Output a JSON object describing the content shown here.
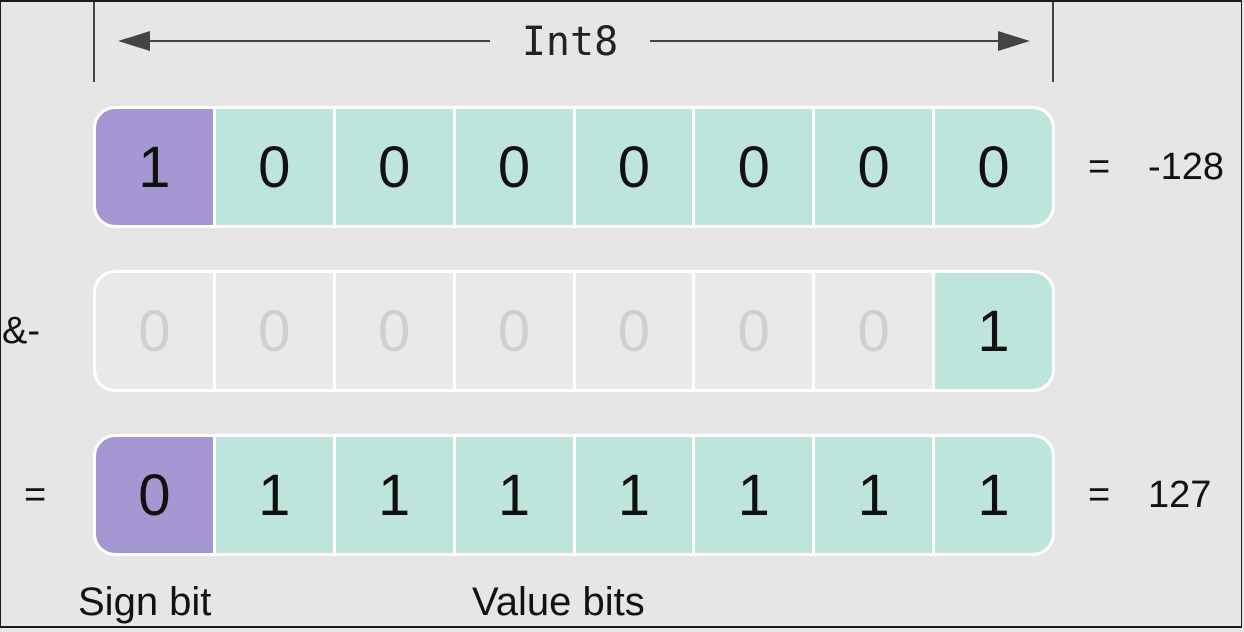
{
  "type_label": "Int8",
  "rows": [
    {
      "left_op": "",
      "bits": [
        "1",
        "0",
        "0",
        "0",
        "0",
        "0",
        "0",
        "0"
      ],
      "styles": [
        "sign",
        "value",
        "value",
        "value",
        "value",
        "value",
        "value",
        "value"
      ],
      "equals": "=",
      "result": "-128"
    },
    {
      "left_op": "&-",
      "bits": [
        "0",
        "0",
        "0",
        "0",
        "0",
        "0",
        "0",
        "1"
      ],
      "styles": [
        "dim",
        "dim",
        "dim",
        "dim",
        "dim",
        "dim",
        "dim",
        "value"
      ],
      "equals": "",
      "result": ""
    },
    {
      "left_op": "=",
      "bits": [
        "0",
        "1",
        "1",
        "1",
        "1",
        "1",
        "1",
        "1"
      ],
      "styles": [
        "sign",
        "value",
        "value",
        "value",
        "value",
        "value",
        "value",
        "value"
      ],
      "equals": "=",
      "result": "127"
    }
  ],
  "captions": {
    "sign_bit": "Sign bit",
    "value_bits": "Value bits"
  },
  "colors": {
    "sign_bit": "#a597d1",
    "value_bit": "#bde5dc",
    "inactive_bit": "#e9e9e9",
    "background": "#e6e6e6"
  }
}
